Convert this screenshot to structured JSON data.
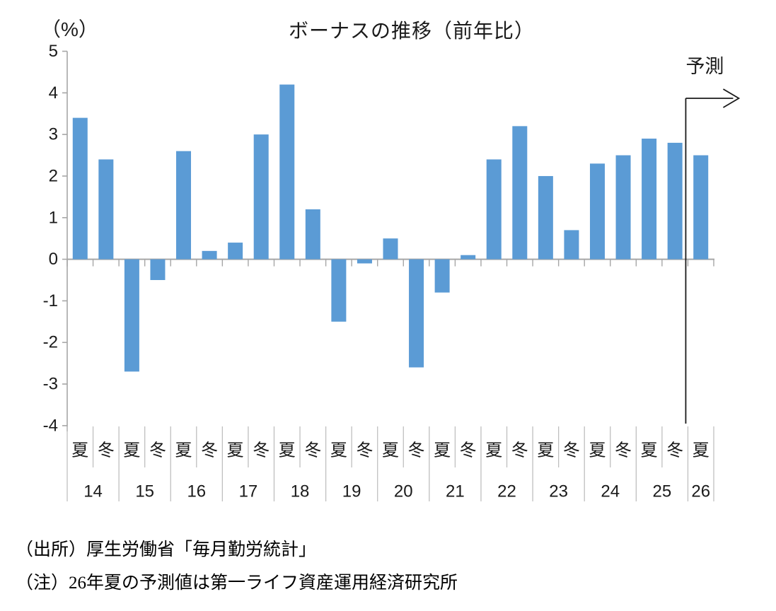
{
  "chart_data": {
    "type": "bar",
    "title": "ボーナスの推移（前年比）",
    "unit_label": "（%）",
    "xlabel": "",
    "ylabel": "%",
    "ylim": [
      -4,
      5
    ],
    "yticks": [
      5,
      4,
      3,
      2,
      1,
      0,
      -1,
      -2,
      -3,
      -4
    ],
    "grid": false,
    "legend_position": "none",
    "bar_color": "#5B9BD5",
    "axis_color": "#A6A6A6",
    "separator_color": "#BFBFBF",
    "text_color": "#1a1a1a",
    "forecast_color": "#1a1a1a",
    "forecast": {
      "label": "予測",
      "applies_to": "26夏"
    },
    "points": [
      {
        "year": "14",
        "season": "夏",
        "value": 3.4
      },
      {
        "year": "14",
        "season": "冬",
        "value": 2.4
      },
      {
        "year": "15",
        "season": "夏",
        "value": -2.7
      },
      {
        "year": "15",
        "season": "冬",
        "value": -0.5
      },
      {
        "year": "16",
        "season": "夏",
        "value": 2.6
      },
      {
        "year": "16",
        "season": "冬",
        "value": 0.2
      },
      {
        "year": "17",
        "season": "夏",
        "value": 0.4
      },
      {
        "year": "17",
        "season": "冬",
        "value": 3.0
      },
      {
        "year": "18",
        "season": "夏",
        "value": 4.2
      },
      {
        "year": "18",
        "season": "冬",
        "value": 1.2
      },
      {
        "year": "19",
        "season": "夏",
        "value": -1.5
      },
      {
        "year": "19",
        "season": "冬",
        "value": -0.1
      },
      {
        "year": "20",
        "season": "夏",
        "value": 0.5
      },
      {
        "year": "20",
        "season": "冬",
        "value": -2.6
      },
      {
        "year": "21",
        "season": "夏",
        "value": -0.8
      },
      {
        "year": "21",
        "season": "冬",
        "value": 0.1
      },
      {
        "year": "22",
        "season": "夏",
        "value": 2.4
      },
      {
        "year": "22",
        "season": "冬",
        "value": 3.2
      },
      {
        "year": "23",
        "season": "夏",
        "value": 2.0
      },
      {
        "year": "23",
        "season": "冬",
        "value": 0.7
      },
      {
        "year": "24",
        "season": "夏",
        "value": 2.3
      },
      {
        "year": "24",
        "season": "冬",
        "value": 2.5
      },
      {
        "year": "25",
        "season": "夏",
        "value": 2.9
      },
      {
        "year": "25",
        "season": "冬",
        "value": 2.8
      },
      {
        "year": "26",
        "season": "夏",
        "value": 2.5
      }
    ]
  },
  "notes": {
    "source": "（出所）厚生労働省「毎月勤労統計」",
    "note": "（注）26年夏の予測値は第一ライフ資産運用経済研究所"
  }
}
